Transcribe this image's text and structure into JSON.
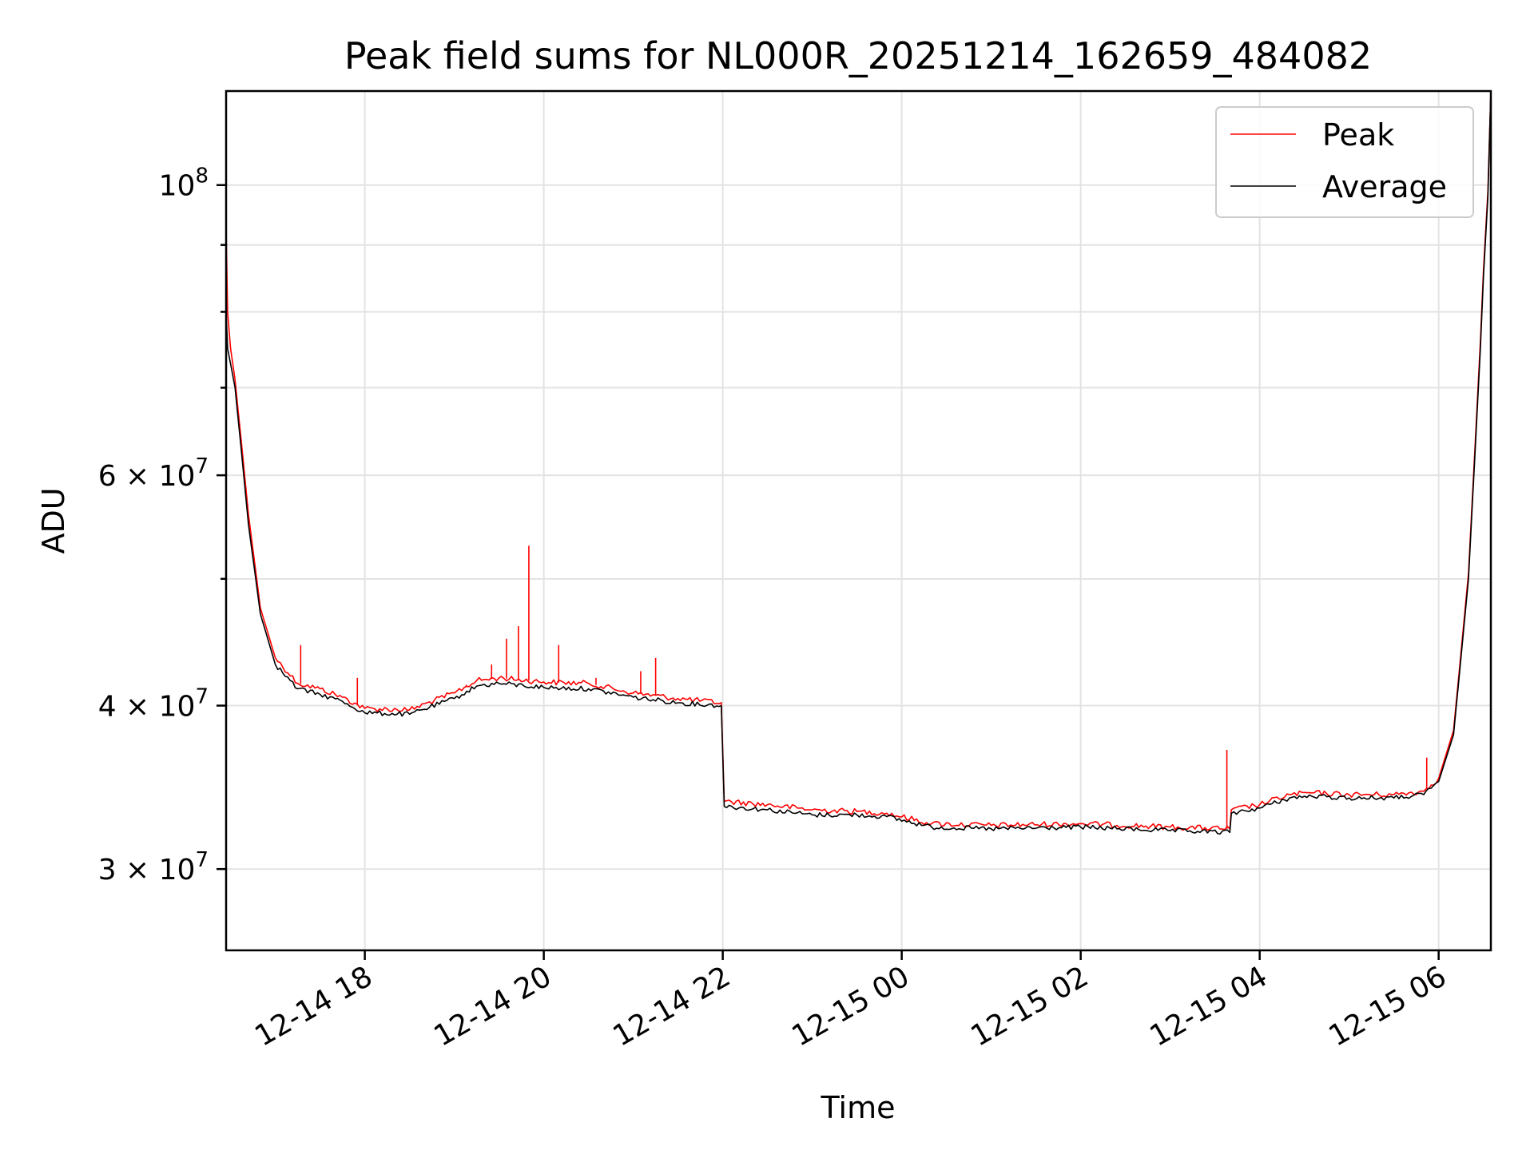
{
  "chart_data": {
    "type": "line",
    "title": "Peak field sums for NL000R_20251214_162659_484082",
    "xlabel": "Time",
    "ylabel": "ADU",
    "yscale": "log",
    "grid": true,
    "legend_position": "top-right",
    "xlim": [
      "2025-12-14 16:27",
      "2025-12-15 06:35"
    ],
    "ylim": [
      26000000,
      118000000
    ],
    "x_ticks": [
      {
        "t": "2025-12-14 18:00",
        "label": "12-14 18"
      },
      {
        "t": "2025-12-14 20:00",
        "label": "12-14 20"
      },
      {
        "t": "2025-12-14 22:00",
        "label": "12-14 22"
      },
      {
        "t": "2025-12-15 00:00",
        "label": "12-15 00"
      },
      {
        "t": "2025-12-15 02:00",
        "label": "12-15 02"
      },
      {
        "t": "2025-12-15 04:00",
        "label": "12-15 04"
      },
      {
        "t": "2025-12-15 06:00",
        "label": "12-15 06"
      }
    ],
    "y_ticks": [
      {
        "v": 30000000,
        "base": "3 × 10",
        "exp": "7"
      },
      {
        "v": 40000000,
        "base": "4 × 10",
        "exp": "7"
      },
      {
        "v": 60000000,
        "base": "6 × 10",
        "exp": "7"
      },
      {
        "v": 100000000,
        "base": "10",
        "exp": "8"
      }
    ],
    "y_minor_ticks": [
      50000000,
      70000000,
      80000000,
      90000000
    ],
    "series": [
      {
        "name": "Average",
        "color": "#000000",
        "x": [
          "2025-12-14 16:27",
          "2025-12-14 16:28",
          "2025-12-14 16:30",
          "2025-12-14 16:33",
          "2025-12-14 16:37",
          "2025-12-14 16:42",
          "2025-12-14 16:50",
          "2025-12-14 17:00",
          "2025-12-14 17:15",
          "2025-12-14 17:30",
          "2025-12-14 17:45",
          "2025-12-14 18:00",
          "2025-12-14 18:30",
          "2025-12-14 19:00",
          "2025-12-14 19:15",
          "2025-12-14 19:30",
          "2025-12-14 20:00",
          "2025-12-14 20:30",
          "2025-12-14 21:00",
          "2025-12-14 21:30",
          "2025-12-14 21:59",
          "2025-12-14 22:01",
          "2025-12-14 22:30",
          "2025-12-14 23:00",
          "2025-12-14 23:30",
          "2025-12-14 23:50",
          "2025-12-15 00:20",
          "2025-12-15 01:00",
          "2025-12-15 02:00",
          "2025-12-15 03:00",
          "2025-12-15 03:40",
          "2025-12-15 03:41",
          "2025-12-15 04:00",
          "2025-12-15 04:20",
          "2025-12-15 04:35",
          "2025-12-15 05:00",
          "2025-12-15 05:30",
          "2025-12-15 05:50",
          "2025-12-15 06:00",
          "2025-12-15 06:10",
          "2025-12-15 06:20",
          "2025-12-15 06:28",
          "2025-12-15 06:30",
          "2025-12-15 06:33",
          "2025-12-15 06:35"
        ],
        "values": [
          80000000,
          75000000,
          73000000,
          70000000,
          63000000,
          55000000,
          47000000,
          43000000,
          41200000,
          40800000,
          40300000,
          39500000,
          39400000,
          40500000,
          41400000,
          41600000,
          41300000,
          41200000,
          40600000,
          40200000,
          40000000,
          33500000,
          33300000,
          33000000,
          33000000,
          32900000,
          32300000,
          32200000,
          32300000,
          32100000,
          32000000,
          33100000,
          33400000,
          34000000,
          34100000,
          34000000,
          34000000,
          34200000,
          35000000,
          38000000,
          50000000,
          75000000,
          85000000,
          98000000,
          118000000
        ]
      },
      {
        "name": "Peak",
        "color": "#ff0000",
        "x": [
          "2025-12-14 16:27",
          "2025-12-14 16:28",
          "2025-12-14 16:30",
          "2025-12-14 16:33",
          "2025-12-14 16:37",
          "2025-12-14 16:42",
          "2025-12-14 16:50",
          "2025-12-14 17:00",
          "2025-12-14 17:15",
          "2025-12-14 17:30",
          "2025-12-14 17:45",
          "2025-12-14 18:00",
          "2025-12-14 18:30",
          "2025-12-14 19:00",
          "2025-12-14 19:15",
          "2025-12-14 19:30",
          "2025-12-14 20:00",
          "2025-12-14 20:30",
          "2025-12-14 21:00",
          "2025-12-14 21:30",
          "2025-12-14 21:59",
          "2025-12-14 22:01",
          "2025-12-14 22:30",
          "2025-12-14 23:00",
          "2025-12-14 23:30",
          "2025-12-14 23:50",
          "2025-12-15 00:20",
          "2025-12-15 01:00",
          "2025-12-15 02:00",
          "2025-12-15 03:00",
          "2025-12-15 03:40",
          "2025-12-15 03:41",
          "2025-12-15 04:00",
          "2025-12-15 04:20",
          "2025-12-15 04:35",
          "2025-12-15 05:00",
          "2025-12-15 05:30",
          "2025-12-15 05:50",
          "2025-12-15 06:00",
          "2025-12-15 06:10",
          "2025-12-15 06:20",
          "2025-12-15 06:28",
          "2025-12-15 06:30",
          "2025-12-15 06:33",
          "2025-12-15 06:35"
        ],
        "values": [
          93000000,
          80000000,
          75000000,
          71000000,
          64000000,
          56000000,
          47500000,
          43500000,
          41600000,
          41200000,
          40600000,
          39800000,
          39700000,
          40900000,
          41800000,
          42000000,
          41700000,
          41600000,
          40900000,
          40500000,
          40200000,
          33800000,
          33600000,
          33300000,
          33200000,
          33100000,
          32500000,
          32400000,
          32500000,
          32300000,
          32200000,
          33300000,
          33600000,
          34200000,
          34300000,
          34200000,
          34200000,
          34400000,
          35200000,
          38300000,
          50500000,
          76000000,
          86000000,
          99000000,
          118000000
        ]
      }
    ],
    "spikes": [
      {
        "name": "Peak",
        "t": "2025-12-14 17:17",
        "value": 44500000
      },
      {
        "name": "Peak",
        "t": "2025-12-14 17:55",
        "value": 42000000
      },
      {
        "name": "Peak",
        "t": "2025-12-14 19:08",
        "value": 41500000
      },
      {
        "name": "Peak",
        "t": "2025-12-14 19:25",
        "value": 43000000
      },
      {
        "name": "Peak",
        "t": "2025-12-14 19:35",
        "value": 45000000
      },
      {
        "name": "Peak",
        "t": "2025-12-14 19:43",
        "value": 46000000
      },
      {
        "name": "Peak",
        "t": "2025-12-14 19:50",
        "value": 53000000
      },
      {
        "name": "Peak",
        "t": "2025-12-14 20:10",
        "value": 44500000
      },
      {
        "name": "Peak",
        "t": "2025-12-14 20:35",
        "value": 42000000
      },
      {
        "name": "Peak",
        "t": "2025-12-14 21:05",
        "value": 42500000
      },
      {
        "name": "Peak",
        "t": "2025-12-14 21:15",
        "value": 43500000
      },
      {
        "name": "Peak",
        "t": "2025-12-15 03:38",
        "value": 37000000
      },
      {
        "name": "Peak",
        "t": "2025-12-15 05:52",
        "value": 36500000
      }
    ]
  }
}
